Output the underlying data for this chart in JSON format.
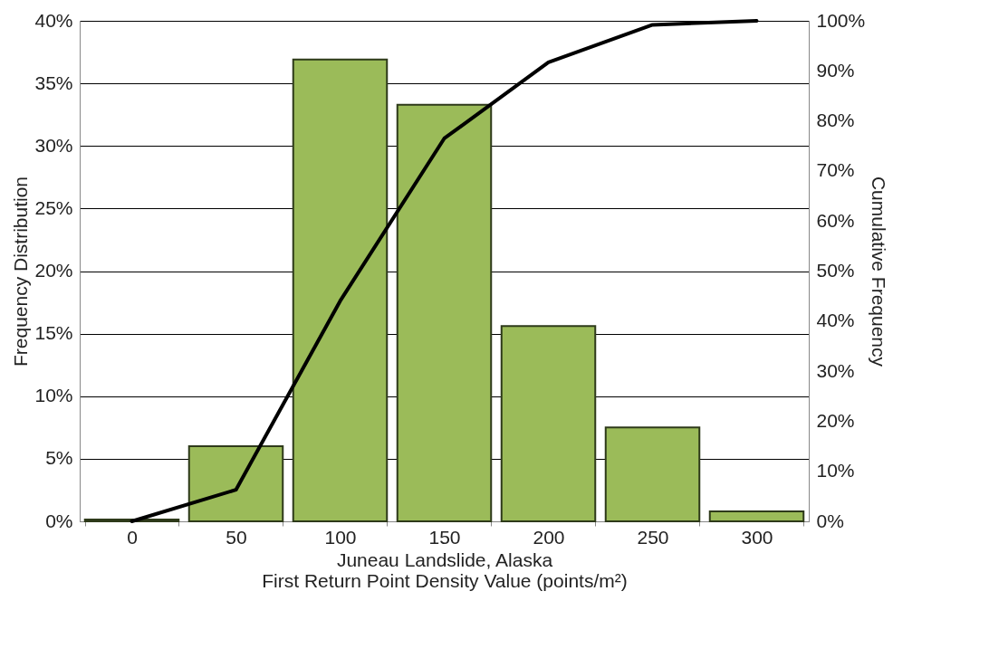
{
  "chart_data": {
    "type": "bar",
    "xlabel": "Juneau Landslide, Alaska\nFirst Return Point Density Value (points/m²)",
    "ylabel": "Frequency Distribution",
    "y2label": "Cumulative Frequency",
    "categories": [
      "0",
      "50",
      "100",
      "150",
      "200",
      "250",
      "300"
    ],
    "series": [
      {
        "color": "#9bbb59",
        "values": [
          0.15,
          6.0,
          36.9,
          33.3,
          15.6,
          7.5,
          0.8
        ]
      },
      {
        "type": "line",
        "axis": "y2",
        "color": "#000000",
        "values": [
          0,
          6.3,
          44,
          76.5,
          91.7,
          99.2,
          100
        ]
      }
    ],
    "ylim": [
      0,
      40
    ],
    "yticks": [
      {
        "value": 0,
        "label": "0%"
      },
      {
        "value": 5,
        "label": "5%"
      },
      {
        "value": 10,
        "label": "10%"
      },
      {
        "value": 15,
        "label": "15%"
      },
      {
        "value": 20,
        "label": "20%"
      },
      {
        "value": 25,
        "label": "25%"
      },
      {
        "value": 30,
        "label": "30%"
      },
      {
        "value": 35,
        "label": "35%"
      },
      {
        "value": 40,
        "label": "40%"
      }
    ],
    "y2lim": [
      0,
      100
    ],
    "y2ticks": [
      {
        "value": 0,
        "label": "0%"
      },
      {
        "value": 10,
        "label": "10%"
      },
      {
        "value": 20,
        "label": "20%"
      },
      {
        "value": 30,
        "label": "30%"
      },
      {
        "value": 40,
        "label": "40%"
      },
      {
        "value": 50,
        "label": "50%"
      },
      {
        "value": 60,
        "label": "60%"
      },
      {
        "value": 70,
        "label": "70%"
      },
      {
        "value": 80,
        "label": "80%"
      },
      {
        "value": 90,
        "label": "90%"
      },
      {
        "value": 100,
        "label": "100%"
      }
    ],
    "grid": "y",
    "marker": "none",
    "line_style": "solid"
  }
}
